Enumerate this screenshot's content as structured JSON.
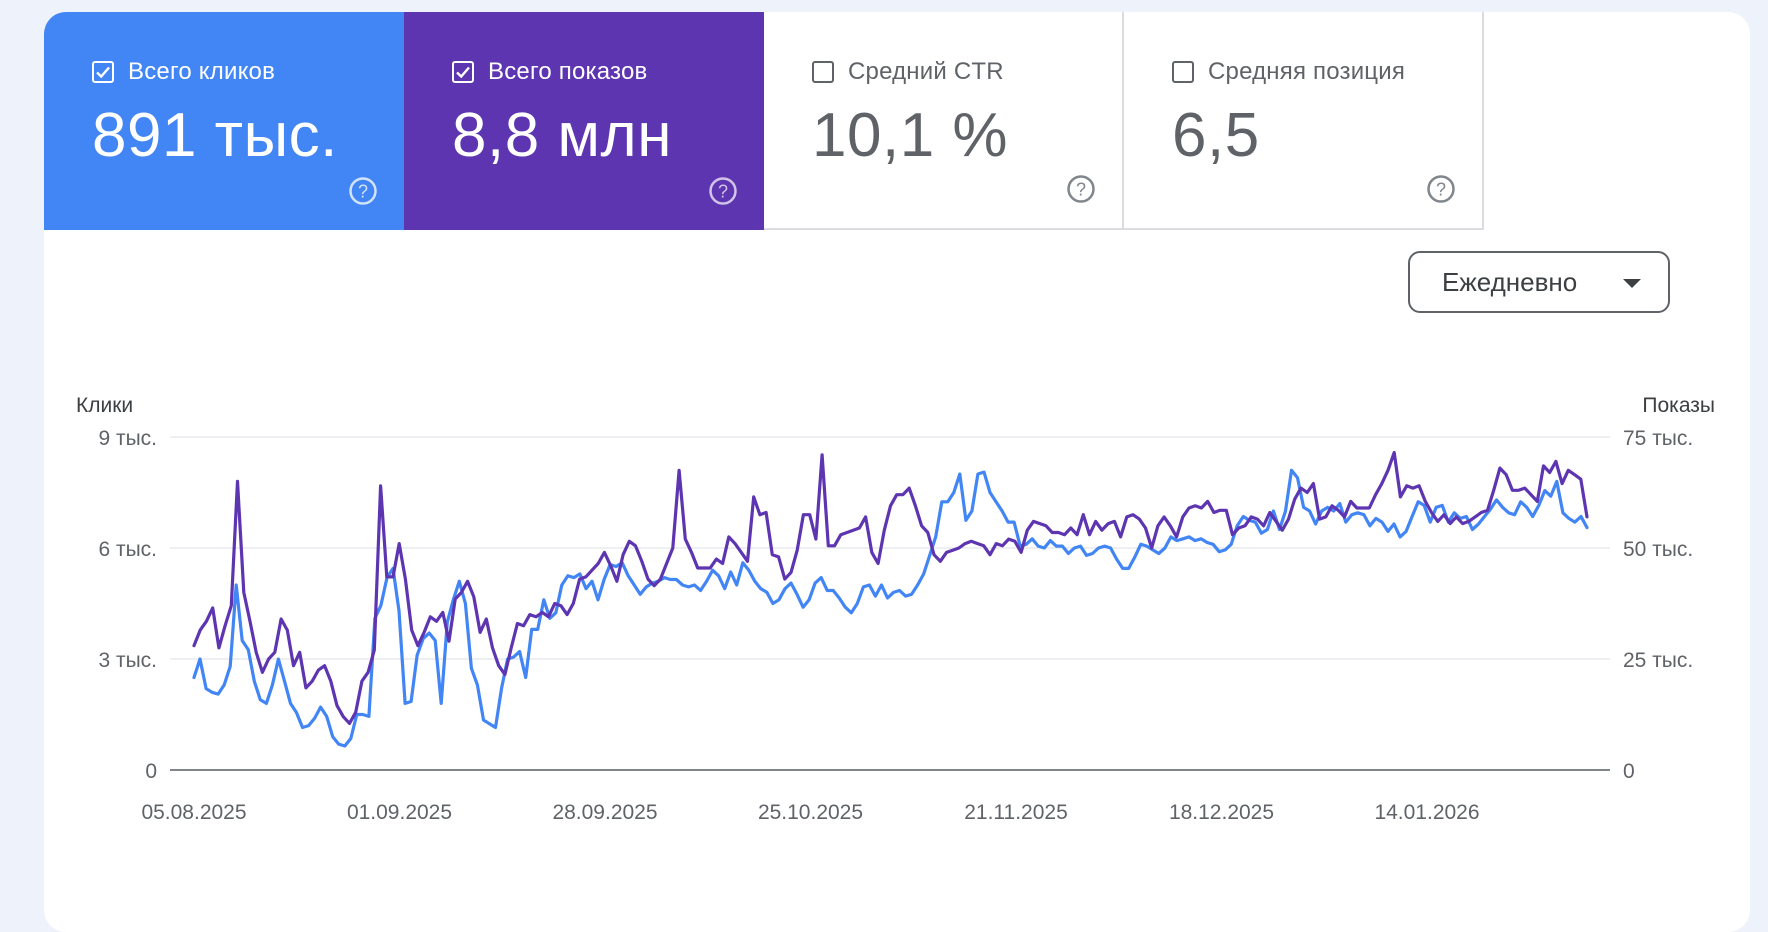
{
  "tiles": [
    {
      "label": "Всего кликов",
      "value": "891 тыс.",
      "checked": true,
      "color": "#4285f4"
    },
    {
      "label": "Всего показов",
      "value": "8,8 млн",
      "checked": true,
      "color": "#5e35b1"
    },
    {
      "label": "Средний CTR",
      "value": "10,1 %",
      "checked": false
    },
    {
      "label": "Средняя позиция",
      "value": "6,5",
      "checked": false
    }
  ],
  "granularity": {
    "selected": "Ежедневно"
  },
  "chart_data": {
    "type": "line",
    "left_axis": {
      "title": "Клики",
      "ticks": [
        "9 тыс.",
        "6 тыс.",
        "3 тыс.",
        "0"
      ],
      "range": [
        0,
        9000
      ]
    },
    "right_axis": {
      "title": "Показы",
      "ticks": [
        "75 тыс.",
        "50 тыс.",
        "25 тыс.",
        "0"
      ],
      "range": [
        0,
        75000
      ]
    },
    "x_ticks": [
      "05.08.2025",
      "01.09.2025",
      "28.09.2025",
      "25.10.2025",
      "21.11.2025",
      "18.12.2025",
      "14.01.2026"
    ],
    "grid": true,
    "series": [
      {
        "axis": "left",
        "color": "#4285f4",
        "values": [
          2500,
          3000,
          2200,
          2100,
          2050,
          2300,
          2800,
          5000,
          3500,
          3250,
          2400,
          1900,
          1800,
          2300,
          3000,
          2400,
          1800,
          1550,
          1150,
          1200,
          1400,
          1700,
          1450,
          900,
          700,
          650,
          850,
          1500,
          1500,
          1450,
          4100,
          4450,
          5200,
          5450,
          4300,
          1800,
          1850,
          3100,
          3550,
          3700,
          3500,
          1800,
          4000,
          4600,
          5100,
          4500,
          2750,
          2300,
          1350,
          1250,
          1150,
          2200,
          3000,
          3050,
          3200,
          2500,
          3800,
          3800,
          4600,
          4100,
          4250,
          5000,
          5250,
          5200,
          5300,
          4900,
          5100,
          4600,
          5150,
          5550,
          5500,
          5600,
          5250,
          5000,
          4750,
          4950,
          5050,
          5100,
          5200,
          5150,
          5150,
          5000,
          4950,
          5000,
          4850,
          5100,
          5400,
          5250,
          4900,
          5350,
          5000,
          5600,
          5400,
          5100,
          4900,
          4800,
          4500,
          4600,
          4900,
          5050,
          4750,
          4400,
          4600,
          5050,
          5200,
          4850,
          4850,
          4650,
          4400,
          4250,
          4500,
          4950,
          5000,
          4700,
          5000,
          4650,
          4800,
          4850,
          4700,
          4750,
          5000,
          5300,
          5800,
          6300,
          7250,
          7250,
          7500,
          8000,
          6750,
          7000,
          8000,
          8050,
          7500,
          7250,
          7000,
          6700,
          6700,
          6050,
          6100,
          6250,
          6050,
          6000,
          6200,
          6050,
          6050,
          5850,
          6000,
          6050,
          5800,
          5850,
          6000,
          6050,
          6000,
          5700,
          5450,
          5450,
          5750,
          6100,
          6050,
          5950,
          5850,
          6000,
          6300,
          6200,
          6250,
          6300,
          6200,
          6250,
          6150,
          6100,
          5900,
          5950,
          6100,
          6600,
          6850,
          6750,
          6700,
          6400,
          6500,
          7000,
          6500,
          7000,
          8100,
          7900,
          7100,
          7000,
          6650,
          7000,
          7100,
          7000,
          7200,
          6700,
          6900,
          6950,
          6900,
          6600,
          6800,
          6700,
          6450,
          6650,
          6300,
          6450,
          6850,
          7250,
          7150,
          6700,
          7100,
          7150,
          6700,
          6950,
          6800,
          6850,
          6500,
          6650,
          6850,
          7050,
          7300,
          7100,
          6950,
          6900,
          7250,
          7100,
          6850,
          7150,
          7550,
          7400,
          7800,
          6950,
          6800,
          6700,
          6850,
          6550
        ]
      },
      {
        "axis": "right",
        "color": "#5e35b1",
        "values": [
          28000,
          31500,
          33500,
          36500,
          27500,
          32500,
          37000,
          65000,
          40000,
          33500,
          26500,
          22000,
          25000,
          26500,
          34000,
          31500,
          23500,
          26500,
          18500,
          20000,
          22500,
          23500,
          20000,
          14500,
          12000,
          10500,
          13000,
          20000,
          22000,
          27000,
          64000,
          43500,
          43500,
          51000,
          43000,
          31500,
          28000,
          31000,
          34500,
          33500,
          35500,
          29000,
          38500,
          40000,
          42500,
          39000,
          31000,
          34000,
          27500,
          23500,
          21500,
          27500,
          33000,
          32500,
          35000,
          34500,
          35500,
          34500,
          37500,
          37000,
          35000,
          37500,
          43000,
          43500,
          45000,
          46500,
          49000,
          46000,
          42500,
          48500,
          51500,
          50500,
          47000,
          43000,
          41500,
          43000,
          46500,
          50000,
          67500,
          52000,
          49000,
          45500,
          45500,
          45500,
          47500,
          46500,
          52500,
          51000,
          49000,
          47000,
          61500,
          57500,
          58000,
          48500,
          48000,
          43000,
          44500,
          49500,
          57500,
          57500,
          52000,
          71000,
          50500,
          50500,
          53000,
          53500,
          54000,
          54500,
          57000,
          49000,
          46500,
          54000,
          59500,
          62000,
          62000,
          63500,
          59500,
          55000,
          53500,
          48500,
          47000,
          49000,
          49500,
          50000,
          51000,
          51500,
          51000,
          50500,
          48500,
          51000,
          50500,
          52000,
          51500,
          49000,
          54000,
          56000,
          55500,
          55000,
          53500,
          53500,
          53000,
          54500,
          53000,
          57500,
          53000,
          56000,
          54000,
          55500,
          56000,
          52500,
          57000,
          57500,
          56500,
          54500,
          50000,
          55000,
          57000,
          55000,
          52500,
          57000,
          59000,
          59500,
          59000,
          60500,
          58000,
          58500,
          58500,
          53000,
          54500,
          55000,
          57000,
          56500,
          55000,
          58000,
          56000,
          54000,
          56500,
          61000,
          63500,
          62500,
          64500,
          56500,
          57000,
          59500,
          58500,
          57000,
          60500,
          59000,
          59000,
          59000,
          62000,
          64500,
          67500,
          71500,
          61500,
          64000,
          63500,
          64000,
          60500,
          58000,
          56000,
          57500,
          55500,
          57000,
          55500,
          56000,
          57000,
          58000,
          58500,
          63000,
          68000,
          66500,
          63000,
          63000,
          63500,
          62000,
          60500,
          68500,
          67000,
          69500,
          64500,
          67500,
          66500,
          65500,
          57000
        ]
      }
    ]
  }
}
